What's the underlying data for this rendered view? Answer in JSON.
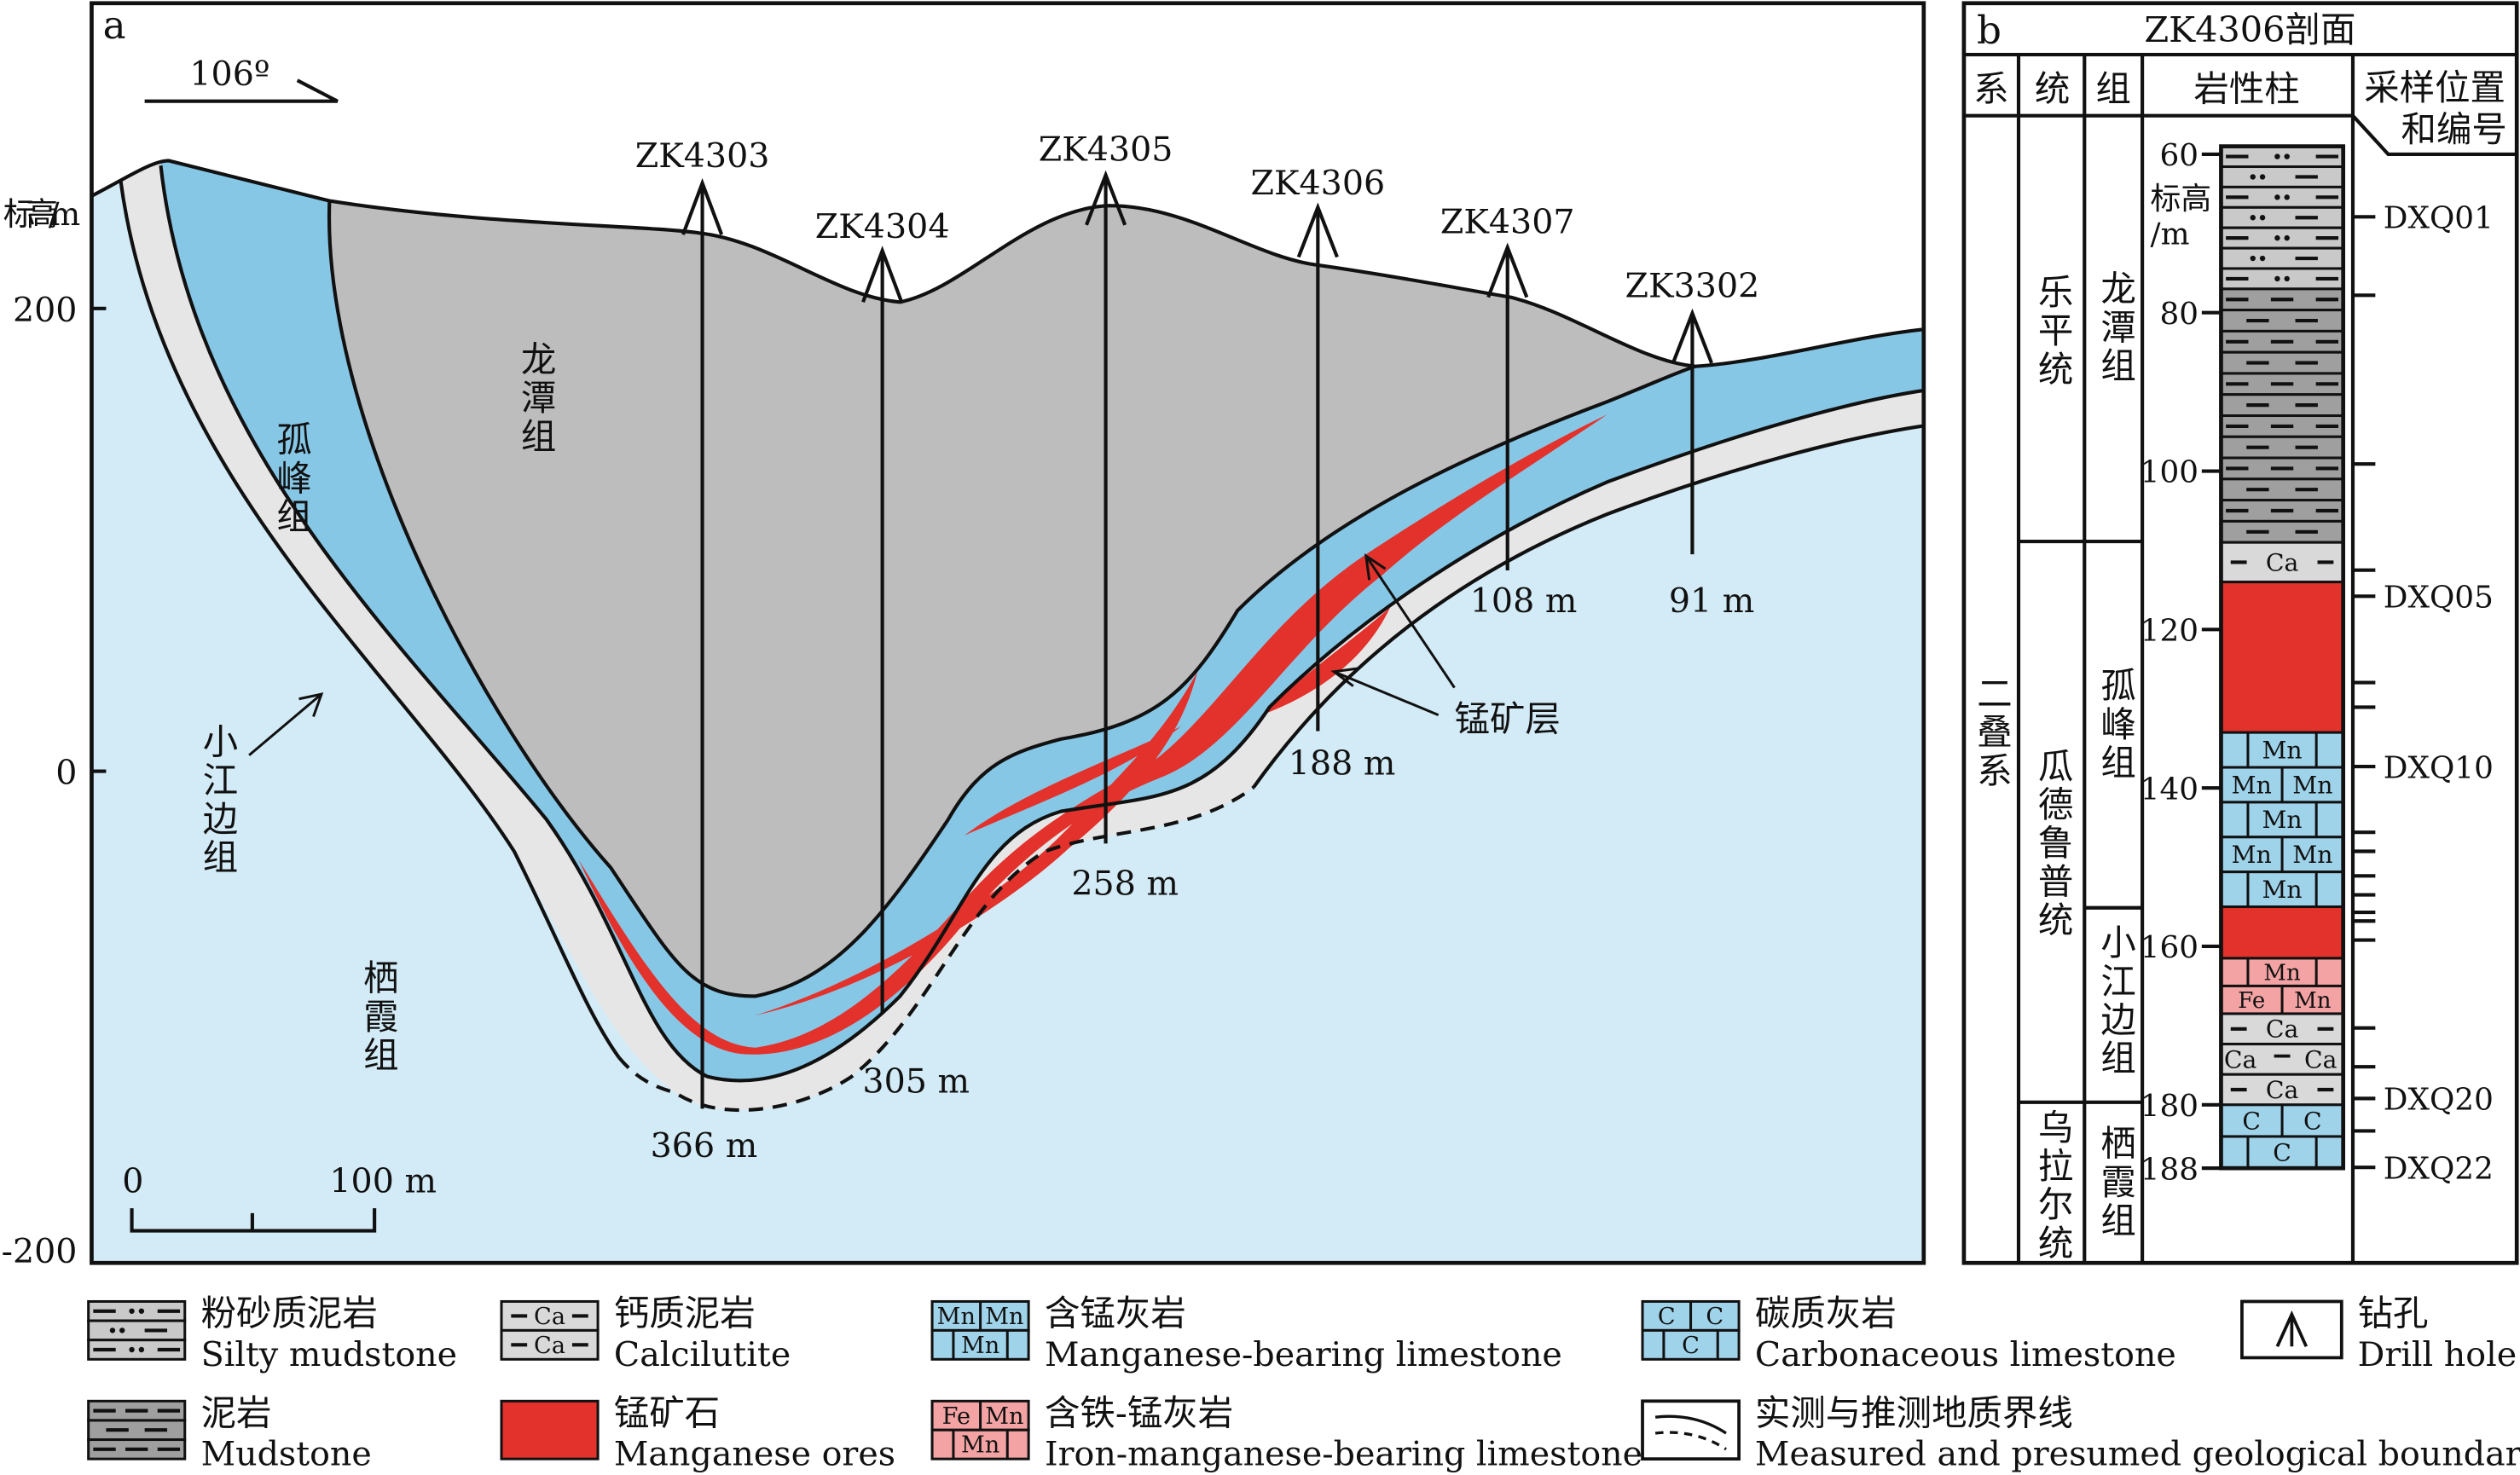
{
  "panel_a": {
    "label": "a",
    "strike": "106º",
    "elev_label": "标高/m",
    "elev_ticks": [
      "200",
      "0",
      "-200"
    ],
    "scale_bar": {
      "start": "0",
      "end": "100 m"
    },
    "formations": {
      "longtan": "龙潭组",
      "gufeng": "孤峰组",
      "xiaojiangbian": "小江边组",
      "qixia": "栖霞组",
      "ore_layer": "锰矿层"
    },
    "drillholes": [
      {
        "name": "ZK4303",
        "depth": "366 m"
      },
      {
        "name": "ZK4304",
        "depth": "305 m"
      },
      {
        "name": "ZK4305",
        "depth": "258 m"
      },
      {
        "name": "ZK4306",
        "depth": "188 m"
      },
      {
        "name": "ZK4307",
        "depth": "108 m"
      },
      {
        "name": "ZK3302",
        "depth": "91 m"
      }
    ]
  },
  "panel_b": {
    "label": "b",
    "title": "ZK4306剖面",
    "headers": {
      "system": "系",
      "series": "统",
      "formation": "组",
      "column": "岩性柱",
      "sample_1": "采样位置",
      "sample_2": "和编号"
    },
    "elev_label_1": "标高",
    "elev_label_2": "/m",
    "system": "二叠系",
    "series": [
      "乐平统",
      "瓜德鲁普统",
      "乌拉尔统"
    ],
    "formations": [
      "龙潭组",
      "孤峰组",
      "小江边组",
      "栖霞组"
    ],
    "depth_ticks": [
      60,
      80,
      100,
      120,
      140,
      160,
      180,
      188
    ],
    "depth_range": [
      59,
      188
    ],
    "units": [
      {
        "type": "silty",
        "top": 59,
        "bottom": 77,
        "beds": 7
      },
      {
        "type": "mud",
        "top": 77,
        "bottom": 109,
        "beds": 12
      },
      {
        "type": "calc",
        "top": 109,
        "bottom": 114,
        "labels": [
          [
            "Ca"
          ]
        ]
      },
      {
        "type": "ore",
        "top": 114,
        "bottom": 133
      },
      {
        "type": "mn",
        "top": 133,
        "bottom": 155,
        "labels": [
          [
            "Mn"
          ],
          [
            "Mn",
            "Mn"
          ],
          [
            "Mn"
          ],
          [
            "Mn",
            "Mn"
          ],
          [
            "Mn"
          ]
        ]
      },
      {
        "type": "ore",
        "top": 155,
        "bottom": 161.5
      },
      {
        "type": "femn",
        "top": 161.5,
        "bottom": 168.5,
        "labels": [
          [
            "Mn"
          ],
          [
            "Fe",
            "Mn"
          ]
        ]
      },
      {
        "type": "calc",
        "top": 168.5,
        "bottom": 180,
        "labels": [
          [
            "Ca"
          ],
          [
            "Ca",
            "Ca"
          ],
          [
            "Ca"
          ]
        ]
      },
      {
        "type": "c",
        "top": 180,
        "bottom": 188,
        "labels": [
          [
            "C",
            "C"
          ],
          [
            "C"
          ]
        ]
      }
    ],
    "sample_ticks": [
      67.9,
      77.8,
      99.1,
      112.5,
      115.8,
      126.7,
      129.8,
      137.3,
      145.6,
      148,
      151.1,
      153.5,
      155.7,
      156.8,
      159.2,
      170.3,
      175.2,
      179.2,
      183.3,
      187.9
    ],
    "samples": [
      {
        "id": "DXQ01",
        "depth": 67.9
      },
      {
        "id": "DXQ05",
        "depth": 115.8
      },
      {
        "id": "DXQ10",
        "depth": 137.3
      },
      {
        "id": "DXQ20",
        "depth": 179.2
      },
      {
        "id": "DXQ22",
        "depth": 187.9
      }
    ]
  },
  "legend": [
    {
      "cn": "粉砂质泥岩",
      "en": "Silty mudstone"
    },
    {
      "cn": "泥岩",
      "en": "Mudstone"
    },
    {
      "cn": "钙质泥岩",
      "en": "Calcilutite"
    },
    {
      "cn": "锰矿石",
      "en": "Manganese ores"
    },
    {
      "cn": "含锰灰岩",
      "en": "Manganese-bearing limestone"
    },
    {
      "cn": "含铁-锰灰岩",
      "en": "Iron-manganese-bearing limestone"
    },
    {
      "cn": "碳质灰岩",
      "en": "Carbonaceous limestone"
    },
    {
      "cn": "实测与推测地质界线",
      "en": "Measured and presumed geological boundaries"
    },
    {
      "cn": "钻孔",
      "en": "Drill hole"
    }
  ],
  "legend_symbols": {
    "ca": "Ca",
    "mn": "Mn",
    "fe": "Fe",
    "c": "C"
  },
  "colors": {
    "ore": "#e3312b",
    "limestone_blue": "#9fd3ea",
    "qixia_bg": "#d3ebf6",
    "longtan_gray": "#bdbdbd",
    "band_gray": "#e6e6e6",
    "silty": "#c9c9c9",
    "mud": "#9f9f9f",
    "calc": "#d9d9d9",
    "femn": "#f3a3a3"
  }
}
